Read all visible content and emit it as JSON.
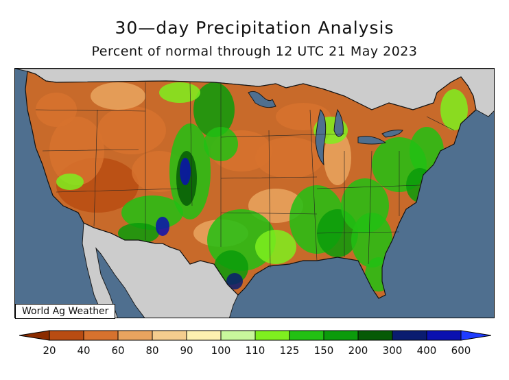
{
  "header": {
    "title": "30—day Precipitation Analysis",
    "subtitle": "Percent of normal through 12 UTC 21 May 2023"
  },
  "map": {
    "region": "Contiguous United States",
    "colors": {
      "ocean": "#4f6f8f",
      "foreign_land": "#cccccc",
      "lakes": "#4f6f8f",
      "borders": "#1a1a1a"
    }
  },
  "credit": "World Ag Weather",
  "legend": {
    "labels": [
      "20",
      "40",
      "60",
      "80",
      "90",
      "100",
      "110",
      "125",
      "150",
      "200",
      "300",
      "400",
      "600"
    ],
    "colors": [
      "#8b2c00",
      "#b84c12",
      "#d7722e",
      "#e9a45f",
      "#f5cd8e",
      "#fdf0b0",
      "#c8f79c",
      "#7fef1f",
      "#22c013",
      "#0b9b0b",
      "#065a06",
      "#0a1c70",
      "#0a10b0",
      "#1f3cff"
    ]
  }
}
